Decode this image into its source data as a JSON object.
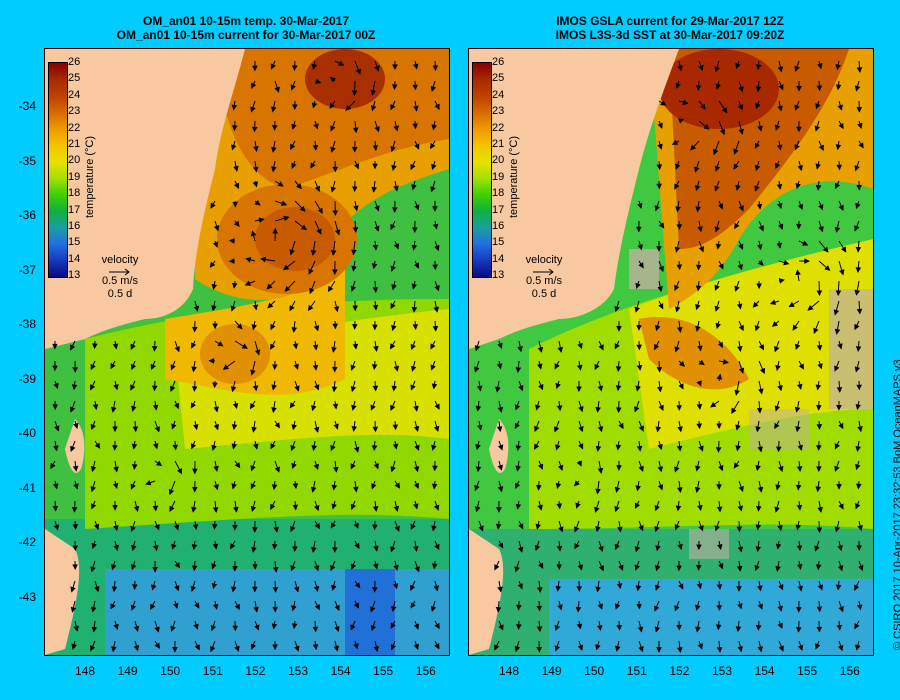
{
  "left_panel": {
    "title_line1": "OM_an01 10-15m temp. 30-Mar-2017",
    "title_line2": "OM_an01 10-15m current for 30-Mar-2017 00Z"
  },
  "right_panel": {
    "title_line1": "IMOS GSLA current for 29-Mar-2017 12Z",
    "title_line2": "IMOS L3S-3d SST at 30-Mar-2017 09:20Z"
  },
  "colorbar": {
    "ticks": [
      "26",
      "25",
      "24",
      "23",
      "22",
      "21",
      "20",
      "19",
      "18",
      "17",
      "16",
      "15",
      "14",
      "13"
    ],
    "label": "temperature (°C)",
    "colors": [
      "#8b0000",
      "#a52a00",
      "#c04000",
      "#d86a00",
      "#ee9a00",
      "#f5c400",
      "#e8e000",
      "#a8e000",
      "#40d000",
      "#10b040",
      "#18a0a0",
      "#2070e0",
      "#1838c0",
      "#0a0a80"
    ]
  },
  "velocity_legend": {
    "label": "velocity",
    "speed": "0.5 m/s",
    "duration": "0.5 d"
  },
  "lat_labels": [
    "-34",
    "-35",
    "-36",
    "-37",
    "-38",
    "-39",
    "-40",
    "-41",
    "-42",
    "-43"
  ],
  "lon_labels": [
    "148",
    "149",
    "150",
    "151",
    "152",
    "153",
    "154",
    "155",
    "156"
  ],
  "credit": "© CSIRO 2017   10-Apr-2017 23:32:53 BoM OceanMAPS v3",
  "colors": {
    "background": "#00ccff",
    "land": "#f8c8a0",
    "ocean_no_data": "#c0b0a0"
  }
}
